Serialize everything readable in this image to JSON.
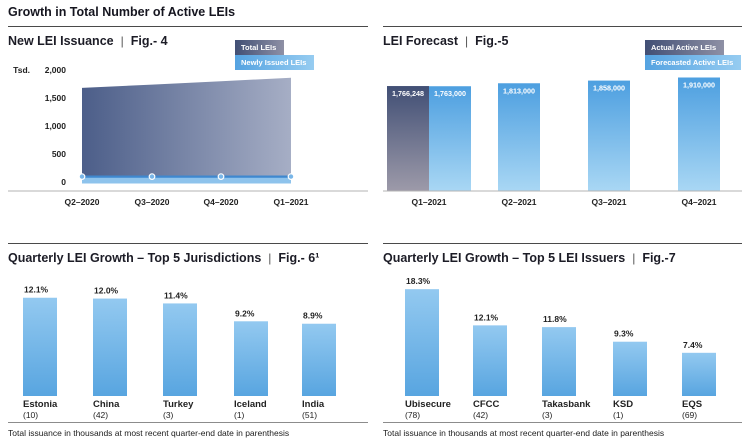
{
  "page": {
    "title": "Growth in Total Number of Active LEIs"
  },
  "footnote": "Total issuance in thousands at most recent quarter-end date in parenthesis",
  "colors": {
    "area_gradient_left": "#4c5e89",
    "area_gradient_right": "#a6aec5",
    "dark_bar_top": "#414f75",
    "dark_bar_bottom": "#9d9aa9",
    "forecast_bar_top": "#4d9fe0",
    "forecast_bar_bottom": "#a9d7f4",
    "growth_bar_top": "#93c9f0",
    "growth_bar_bottom": "#58a5e0",
    "band_fill": "#8ec3ec",
    "band_line": "#3f88cf",
    "axis_line": "#b3b3b3",
    "divider_line": "#8c8c8c",
    "text_dark": "#222222",
    "bar_value_text": "#ffffff"
  },
  "chart_data": [
    {
      "id": "fig4",
      "type": "area",
      "title": "New LEI Issuance",
      "fig_label": "Fig.- 4",
      "y_unit_label": "Tsd.",
      "ylim": [
        0,
        2000
      ],
      "yticks": [
        "2,000",
        "1,500",
        "1,000",
        "500",
        "0"
      ],
      "ytick_values": [
        2000,
        1500,
        1000,
        500,
        0
      ],
      "categories": [
        "Q2–2020",
        "Q3–2020",
        "Q4–2020",
        "Q1–2021"
      ],
      "series": [
        {
          "name": "Total LEIs",
          "values": [
            1680,
            1740,
            1800,
            1860
          ]
        },
        {
          "name": "Newly Issued LEIs",
          "values": [
            60,
            55,
            50,
            60
          ]
        }
      ],
      "legend": [
        "Total LEIs",
        "Newly Issued LEIs"
      ],
      "legend_position": "top-right",
      "grid": false
    },
    {
      "id": "fig5",
      "type": "bar",
      "title": "LEI Forecast",
      "fig_label": "Fig.-5",
      "categories": [
        "Q1–2021",
        "Q2–2021",
        "Q3–2021",
        "Q4–2021"
      ],
      "ylim": [
        0,
        1910000
      ],
      "series": [
        {
          "name": "Actual Active LEIs",
          "values": [
            1766248,
            null,
            null,
            null
          ],
          "labels": [
            "1,766,248",
            "",
            "",
            ""
          ]
        },
        {
          "name": "Forecasted Active LEIs",
          "values": [
            1763000,
            1813000,
            1858000,
            1910000
          ],
          "labels": [
            "1,763,000",
            "1,813,000",
            "1,858,000",
            "1,910,000"
          ]
        }
      ],
      "legend": [
        "Actual Active LEIs",
        "Forecasted Active LEIs"
      ],
      "legend_position": "top-right",
      "grid": false
    },
    {
      "id": "fig6",
      "type": "bar",
      "title": "Quarterly LEI Growth – Top 5 Jurisdictions",
      "fig_label": "Fig.- 6¹",
      "categories": [
        "Estonia",
        "China",
        "Turkey",
        "Iceland",
        "India"
      ],
      "counts": [
        "(10)",
        "(42)",
        "(3)",
        "(1)",
        "(51)"
      ],
      "values": [
        12.1,
        12.0,
        11.4,
        9.2,
        8.9
      ],
      "value_labels": [
        "12.1%",
        "12.0%",
        "11.4%",
        "9.2%",
        "8.9%"
      ],
      "ylim": [
        0,
        13.3
      ],
      "grid": false
    },
    {
      "id": "fig7",
      "type": "bar",
      "title": "Quarterly LEI Growth – Top 5 LEI Issuers",
      "fig_label": "Fig.-7",
      "categories": [
        "Ubisecure",
        "CFCC",
        "Takasbank",
        "KSD",
        "EQS"
      ],
      "counts": [
        "(78)",
        "(42)",
        "(3)",
        "(1)",
        "(69)"
      ],
      "values": [
        18.3,
        12.1,
        11.8,
        9.3,
        7.4
      ],
      "value_labels": [
        "18.3%",
        "12.1%",
        "11.8%",
        "9.3%",
        "7.4%"
      ],
      "ylim": [
        0,
        18.5
      ],
      "grid": false
    }
  ]
}
